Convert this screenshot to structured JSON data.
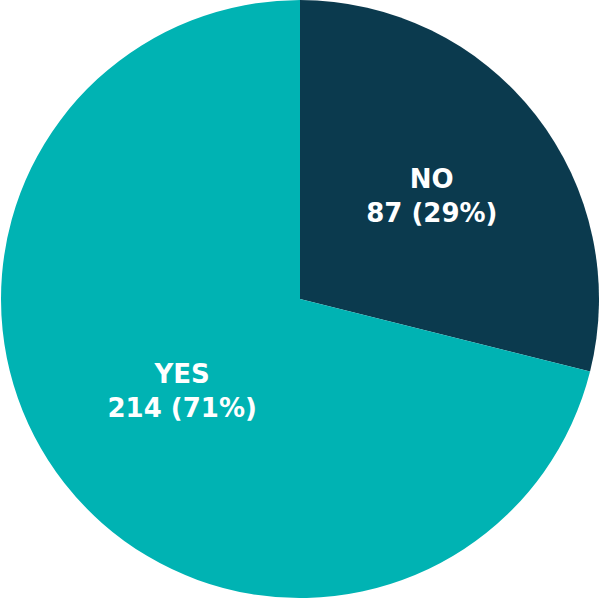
{
  "chart_data": {
    "type": "pie",
    "categories": [
      "NO",
      "YES"
    ],
    "values": [
      87,
      214
    ],
    "value_labels": [
      "87 (29%)",
      "214 (71%)"
    ],
    "colors": [
      "#0b3a4e",
      "#00b3b3"
    ],
    "data_labels": true
  }
}
